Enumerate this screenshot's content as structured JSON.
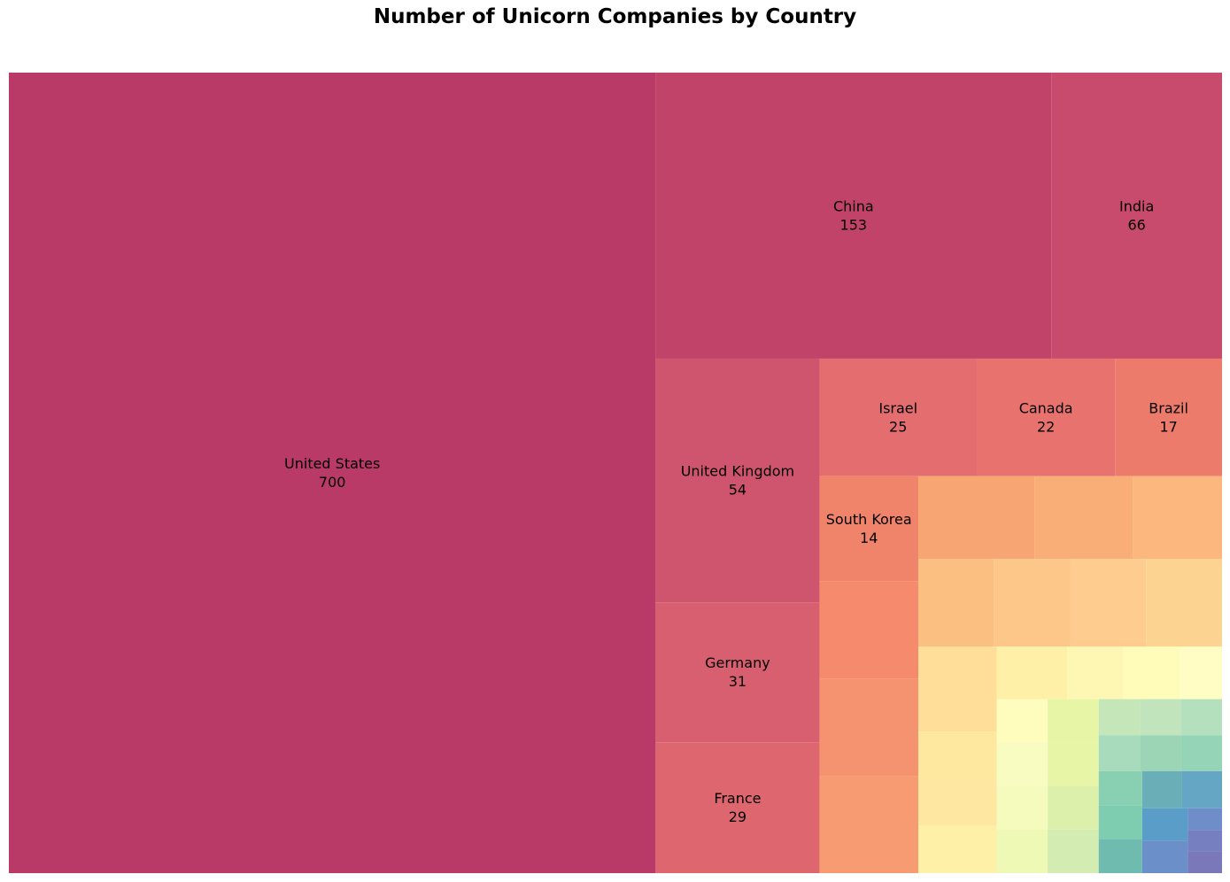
{
  "chart_data": {
    "type": "treemap",
    "title": "Number of Unicorn Companies by Country",
    "colormap": "Spectral",
    "labeled": [
      {
        "name": "United States",
        "value": 700,
        "color": "#b93a67"
      },
      {
        "name": "China",
        "value": 153,
        "color": "#c2436a"
      },
      {
        "name": "India",
        "value": 66,
        "color": "#c84a6c"
      },
      {
        "name": "United Kingdom",
        "value": 54,
        "color": "#cf546d"
      },
      {
        "name": "Germany",
        "value": 31,
        "color": "#d75f6f"
      },
      {
        "name": "France",
        "value": 29,
        "color": "#de666f"
      },
      {
        "name": "Israel",
        "value": 25,
        "color": "#e36d6f"
      },
      {
        "name": "Canada",
        "value": 22,
        "color": "#e8736e"
      },
      {
        "name": "Brazil",
        "value": 17,
        "color": "#ec7b6c"
      },
      {
        "name": "South Korea",
        "value": 14,
        "color": "#f0846a"
      }
    ],
    "unlabeled": [
      {
        "value": 13,
        "color": "#f58b6c"
      },
      {
        "value": 13,
        "color": "#f59370"
      },
      {
        "value": 13,
        "color": "#f79b72"
      },
      {
        "value": 13,
        "color": "#f8a574"
      },
      {
        "value": 11,
        "color": "#f9ae78"
      },
      {
        "value": 10,
        "color": "#fbb77d"
      },
      {
        "value": 9,
        "color": "#fcbf82"
      },
      {
        "value": 9,
        "color": "#fdc78a"
      },
      {
        "value": 9,
        "color": "#fdcc8e"
      },
      {
        "value": 9,
        "color": "#fdd391"
      },
      {
        "value": 9,
        "color": "#fede98"
      },
      {
        "value": 5,
        "color": "#fee8a0"
      },
      {
        "value": 5,
        "color": "#fee8a1"
      },
      {
        "value": 5,
        "color": "#fff0a8"
      },
      {
        "value": 5,
        "color": "#fff0a8"
      },
      {
        "value": 4,
        "color": "#fef7b4"
      },
      {
        "value": 4,
        "color": "#fffbb9"
      },
      {
        "value": 3,
        "color": "#fffdc4"
      },
      {
        "value": 3,
        "color": "#fffdbd"
      },
      {
        "value": 3,
        "color": "#f8fcc0"
      },
      {
        "value": 3,
        "color": "#f4fbbd"
      },
      {
        "value": 3,
        "color": "#edf9b4"
      },
      {
        "value": 3,
        "color": "#e6f5a6"
      },
      {
        "value": 3,
        "color": "#e6f5a6"
      },
      {
        "value": 3,
        "color": "#dcf0ac"
      },
      {
        "value": 3,
        "color": "#d2ecb1"
      },
      {
        "value": 2,
        "color": "#c4e6b9"
      },
      {
        "value": 2,
        "color": "#c1e4bc"
      },
      {
        "value": 2,
        "color": "#b5e0be"
      },
      {
        "value": 2,
        "color": "#a8dbbc"
      },
      {
        "value": 2,
        "color": "#9bd5b5"
      },
      {
        "value": 2,
        "color": "#95d4b6"
      },
      {
        "value": 2,
        "color": "#89cfb2"
      },
      {
        "value": 2,
        "color": "#7fcdb1"
      },
      {
        "value": 2,
        "color": "#70bbb0"
      },
      {
        "value": 2,
        "color": "#6aaeb7"
      },
      {
        "value": 2,
        "color": "#64a6c4"
      },
      {
        "value": 2,
        "color": "#5a9dc8"
      },
      {
        "value": 2,
        "color": "#6a8fc9"
      },
      {
        "value": 1,
        "color": "#6f8dc8"
      },
      {
        "value": 1,
        "color": "#7680c0"
      },
      {
        "value": 1,
        "color": "#7a78b8"
      }
    ]
  }
}
